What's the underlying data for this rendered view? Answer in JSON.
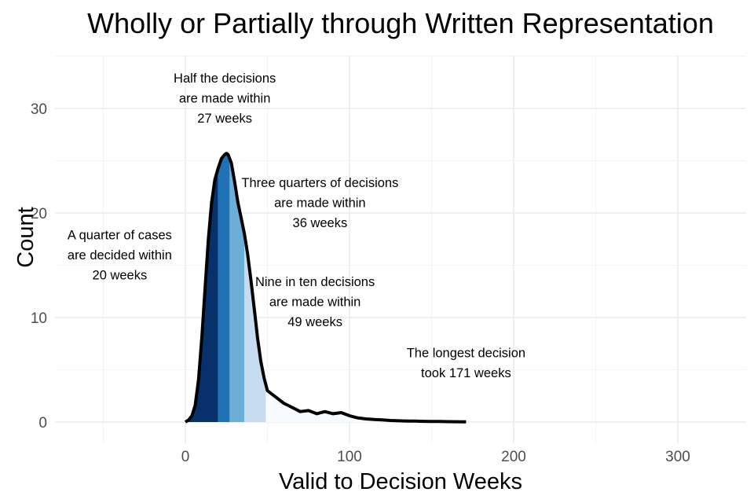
{
  "chart_data": {
    "type": "area",
    "title": "Wholly or Partially through Written Representation",
    "xlabel": "Valid to Decision Weeks",
    "ylabel": "Count",
    "xlim": [
      -80,
      343
    ],
    "ylim": [
      -2,
      35
    ],
    "x_ticks": [
      0,
      100,
      200,
      300
    ],
    "x_tick_labels": [
      "0",
      "100",
      "200",
      "300"
    ],
    "y_ticks": [
      0,
      10,
      20,
      30
    ],
    "y_tick_labels": [
      "0",
      "10",
      "20",
      "30"
    ],
    "grid": true,
    "quantiles": [
      {
        "name": "quarter",
        "weeks": 20,
        "fill": "#08306b"
      },
      {
        "name": "half",
        "weeks": 27,
        "fill": "#2171b5"
      },
      {
        "name": "three-quarters",
        "weeks": 36,
        "fill": "#6baed6"
      },
      {
        "name": "nine-in-ten",
        "weeks": 49,
        "fill": "#c6dbef"
      },
      {
        "name": "max",
        "weeks": 171,
        "fill": "#f7fbff"
      }
    ],
    "curve": {
      "x": [
        0,
        2,
        4,
        6,
        8,
        10,
        12,
        14,
        16,
        18,
        20,
        22,
        24,
        25,
        26,
        28,
        30,
        32,
        34,
        36,
        38,
        40,
        42,
        44,
        46,
        48,
        50,
        55,
        60,
        65,
        70,
        75,
        80,
        85,
        90,
        95,
        100,
        105,
        110,
        115,
        120,
        125,
        130,
        135,
        140,
        145,
        150,
        155,
        160,
        165,
        171
      ],
      "y": [
        0,
        0.2,
        0.6,
        1.6,
        4.0,
        8.0,
        12.8,
        17.5,
        21.0,
        23.2,
        24.3,
        25.2,
        25.6,
        25.7,
        25.6,
        24.8,
        23.0,
        21.0,
        19.5,
        18.0,
        16.0,
        13.5,
        10.8,
        8.0,
        5.8,
        4.2,
        3.0,
        2.4,
        1.8,
        1.4,
        1.0,
        1.1,
        0.8,
        1.0,
        0.8,
        0.9,
        0.6,
        0.4,
        0.3,
        0.25,
        0.2,
        0.15,
        0.12,
        0.1,
        0.09,
        0.07,
        0.05,
        0.05,
        0.04,
        0.03,
        0.02
      ]
    },
    "line_color": "#000000",
    "annotations": [
      {
        "key": "quarter",
        "lines": [
          "A quarter of cases",
          "are decided within",
          "20 weeks"
        ],
        "x": -40,
        "y": 17.5
      },
      {
        "key": "half",
        "lines": [
          "Half the decisions",
          "are made within",
          "27 weeks"
        ],
        "x": 24,
        "y": 32.5
      },
      {
        "key": "three-quarters",
        "lines": [
          "Three quarters of decisions",
          "are made within",
          "36 weeks"
        ],
        "x": 82,
        "y": 22.5
      },
      {
        "key": "nine-in-ten",
        "lines": [
          "Nine in ten decisions",
          "are made within",
          "49 weeks"
        ],
        "x": 79,
        "y": 13.0
      },
      {
        "key": "longest",
        "lines": [
          "The longest decision",
          "took 171 weeks"
        ],
        "x": 171,
        "y": 6.2
      }
    ]
  }
}
